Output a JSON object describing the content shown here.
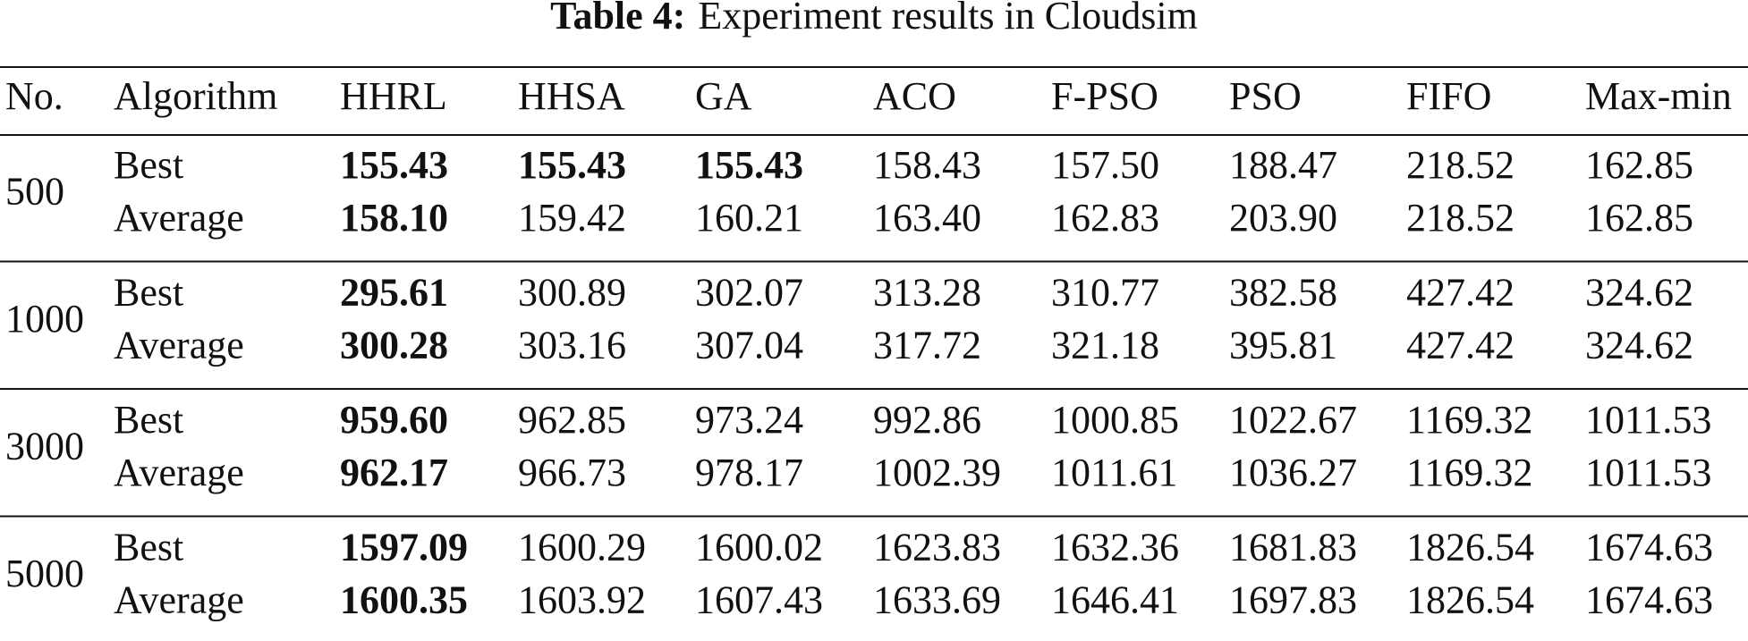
{
  "caption": {
    "label": "Table 4:",
    "text": "Experiment results in Cloudsim"
  },
  "table": {
    "header": [
      "No.",
      "Algorithm",
      "HHRL",
      "HHSA",
      "GA",
      "ACO",
      "F-PSO",
      "PSO",
      "FIFO",
      "Max-min"
    ],
    "groups": [
      {
        "no": "500",
        "rows": [
          {
            "label": "Best",
            "values": [
              "155.43",
              "155.43",
              "155.43",
              "158.43",
              "157.50",
              "188.47",
              "218.52",
              "162.85"
            ],
            "bold": [
              true,
              true,
              true,
              false,
              false,
              false,
              false,
              false
            ]
          },
          {
            "label": "Average",
            "values": [
              "158.10",
              "159.42",
              "160.21",
              "163.40",
              "162.83",
              "203.90",
              "218.52",
              "162.85"
            ],
            "bold": [
              true,
              false,
              false,
              false,
              false,
              false,
              false,
              false
            ]
          }
        ]
      },
      {
        "no": "1000",
        "rows": [
          {
            "label": "Best",
            "values": [
              "295.61",
              "300.89",
              "302.07",
              "313.28",
              "310.77",
              "382.58",
              "427.42",
              "324.62"
            ],
            "bold": [
              true,
              false,
              false,
              false,
              false,
              false,
              false,
              false
            ]
          },
          {
            "label": "Average",
            "values": [
              "300.28",
              "303.16",
              "307.04",
              "317.72",
              "321.18",
              "395.81",
              "427.42",
              "324.62"
            ],
            "bold": [
              true,
              false,
              false,
              false,
              false,
              false,
              false,
              false
            ]
          }
        ]
      },
      {
        "no": "3000",
        "rows": [
          {
            "label": "Best",
            "values": [
              "959.60",
              "962.85",
              "973.24",
              "992.86",
              "1000.85",
              "1022.67",
              "1169.32",
              "1011.53"
            ],
            "bold": [
              true,
              false,
              false,
              false,
              false,
              false,
              false,
              false
            ]
          },
          {
            "label": "Average",
            "values": [
              "962.17",
              "966.73",
              "978.17",
              "1002.39",
              "1011.61",
              "1036.27",
              "1169.32",
              "1011.53"
            ],
            "bold": [
              true,
              false,
              false,
              false,
              false,
              false,
              false,
              false
            ]
          }
        ]
      },
      {
        "no": "5000",
        "rows": [
          {
            "label": "Best",
            "values": [
              "1597.09",
              "1600.29",
              "1600.02",
              "1623.83",
              "1632.36",
              "1681.83",
              "1826.54",
              "1674.63"
            ],
            "bold": [
              true,
              false,
              false,
              false,
              false,
              false,
              false,
              false
            ]
          },
          {
            "label": "Average",
            "values": [
              "1600.35",
              "1603.92",
              "1607.43",
              "1633.69",
              "1646.41",
              "1697.83",
              "1826.54",
              "1674.63"
            ],
            "bold": [
              true,
              false,
              false,
              false,
              false,
              false,
              false,
              false
            ]
          }
        ]
      }
    ]
  }
}
